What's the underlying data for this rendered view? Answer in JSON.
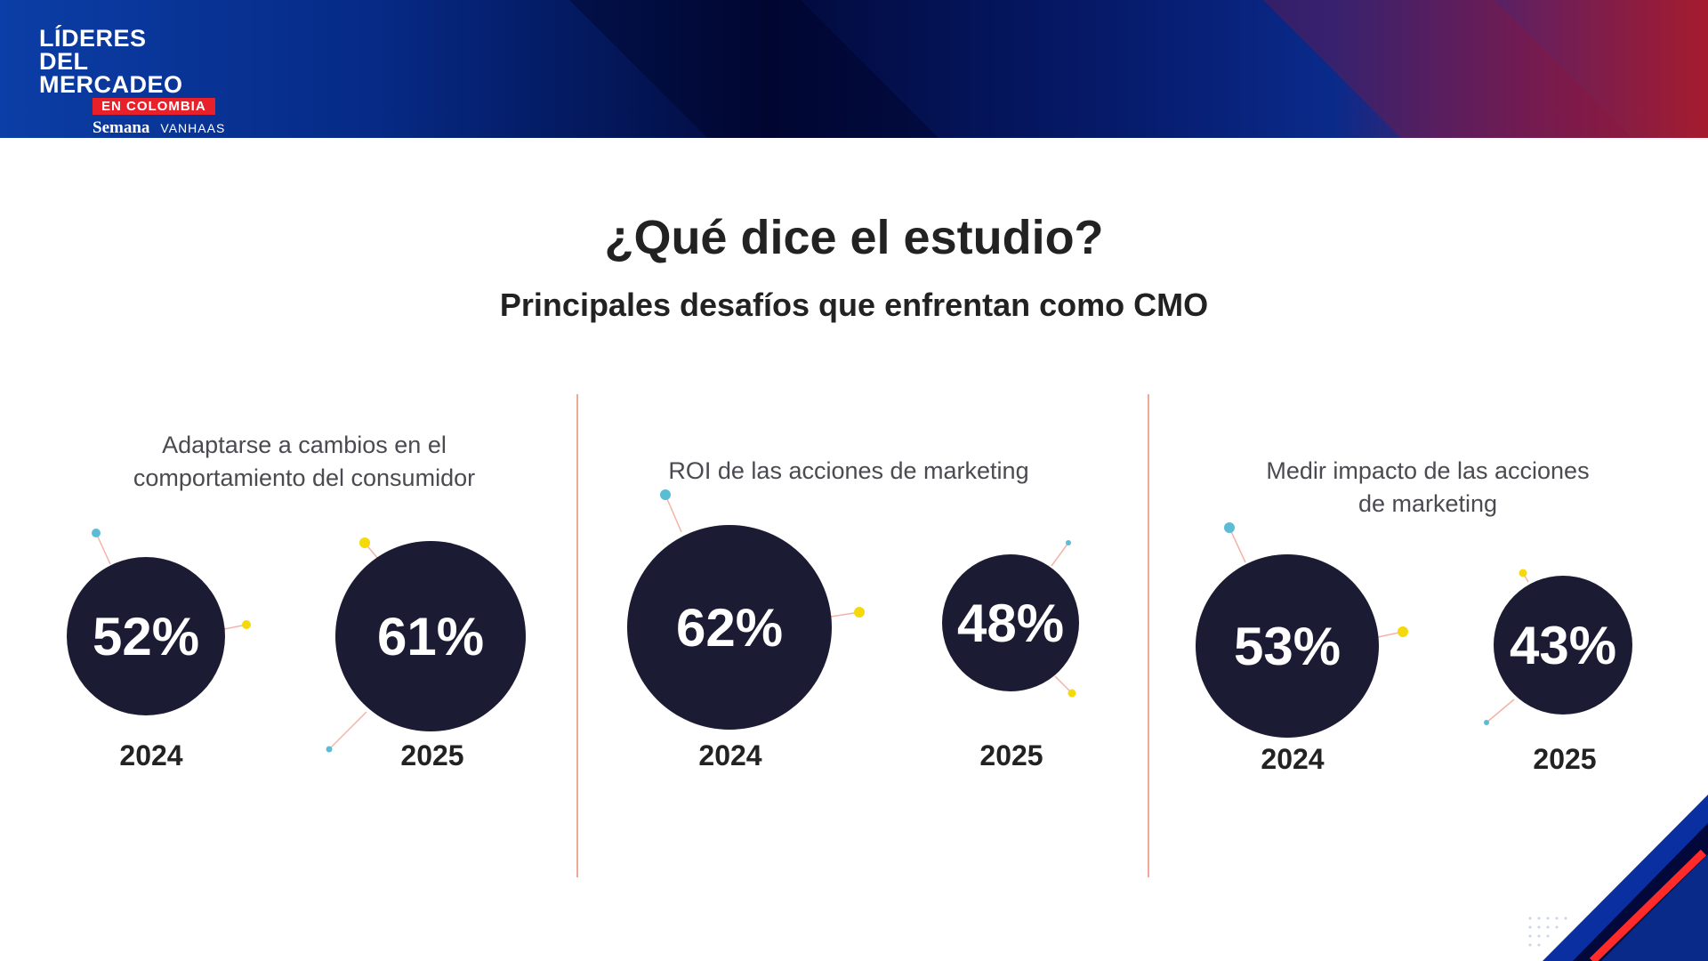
{
  "brand": {
    "line1": "LÍDERES",
    "line2": "DEL MERCADEO",
    "badge": "EN COLOMBIA",
    "partner1": "Semana",
    "partner2": "VANHAAS"
  },
  "title": "¿Qué dice el estudio?",
  "subtitle": "Principales desafíos que enfrentan como CMO",
  "colors": {
    "circle": "#1b1b33",
    "divider": "#f0a898",
    "dot_blue": "#5bbcd6",
    "dot_yellow": "#f5d90a",
    "header_blue": "#0b3ea6",
    "header_red": "#a51b2e"
  },
  "groups": [
    {
      "label": "Adaptarse a cambios en el comportamiento del consumidor",
      "items": [
        {
          "year": "2024",
          "value": "52%"
        },
        {
          "year": "2025",
          "value": "61%"
        }
      ]
    },
    {
      "label": "ROI de las acciones de marketing",
      "items": [
        {
          "year": "2024",
          "value": "62%"
        },
        {
          "year": "2025",
          "value": "48%"
        }
      ]
    },
    {
      "label": "Medir impacto de las acciones de marketing",
      "items": [
        {
          "year": "2024",
          "value": "53%"
        },
        {
          "year": "2025",
          "value": "43%"
        }
      ]
    }
  ]
}
